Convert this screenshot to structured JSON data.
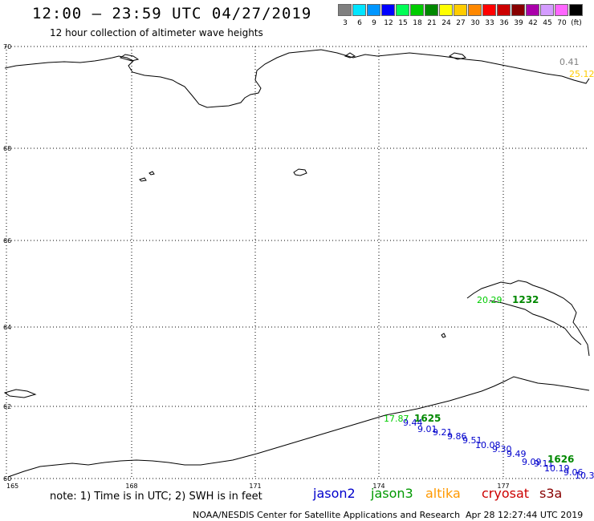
{
  "header": {
    "title": "12:00 – 23:59 UTC 04/27/2019",
    "subtitle": "12 hour collection of altimeter wave heights"
  },
  "scale": {
    "unit": "(ft)",
    "items": [
      {
        "label": "3",
        "color": "#808080"
      },
      {
        "label": "6",
        "color": "#00e5ff"
      },
      {
        "label": "9",
        "color": "#0096ff"
      },
      {
        "label": "12",
        "color": "#0000ff"
      },
      {
        "label": "15",
        "color": "#00ff55"
      },
      {
        "label": "18",
        "color": "#00cc00"
      },
      {
        "label": "21",
        "color": "#008800"
      },
      {
        "label": "24",
        "color": "#ffff00"
      },
      {
        "label": "27",
        "color": "#ffcc00"
      },
      {
        "label": "30",
        "color": "#ff8800"
      },
      {
        "label": "33",
        "color": "#ff0000"
      },
      {
        "label": "36",
        "color": "#cc0000"
      },
      {
        "label": "39",
        "color": "#880000"
      },
      {
        "label": "42",
        "color": "#aa00aa"
      },
      {
        "label": "45",
        "color": "#d49cff"
      },
      {
        "label": "70",
        "color": "#ff66ff"
      },
      {
        "label": "",
        "color": "#000000"
      }
    ]
  },
  "map": {
    "lat_labels": [
      "70",
      "68",
      "66",
      "64",
      "62",
      "60"
    ],
    "lon_labels": [
      "165",
      "168",
      "171",
      "174",
      "177"
    ],
    "observations": [
      {
        "text": "0.41",
        "color": "#808080",
        "bold": false,
        "size": 11
      },
      {
        "text": "25.12",
        "color": "#ffcc00",
        "bold": false,
        "size": 11
      },
      {
        "text": "20.29",
        "color": "#00cc00",
        "bold": false,
        "size": 11
      },
      {
        "text": "1232",
        "color": "#008800",
        "bold": true,
        "size": 12
      },
      {
        "text": "17.87",
        "color": "#00cc00",
        "bold": false,
        "size": 11
      },
      {
        "text": "1625",
        "color": "#008800",
        "bold": true,
        "size": 12
      },
      {
        "text": "9.44",
        "color": "#0000cc",
        "bold": false,
        "size": 11
      },
      {
        "text": "9.01",
        "color": "#0000cc",
        "bold": false,
        "size": 11
      },
      {
        "text": "9.21",
        "color": "#0000cc",
        "bold": false,
        "size": 11
      },
      {
        "text": "9.86",
        "color": "#0000cc",
        "bold": false,
        "size": 11
      },
      {
        "text": "9.51",
        "color": "#0000cc",
        "bold": false,
        "size": 11
      },
      {
        "text": "10.08",
        "color": "#0000cc",
        "bold": false,
        "size": 11
      },
      {
        "text": "9.30",
        "color": "#0000cc",
        "bold": false,
        "size": 11
      },
      {
        "text": "9.49",
        "color": "#0000cc",
        "bold": false,
        "size": 11
      },
      {
        "text": "9.09",
        "color": "#0000cc",
        "bold": false,
        "size": 11
      },
      {
        "text": "9.11",
        "color": "#0000cc",
        "bold": false,
        "size": 11
      },
      {
        "text": "10.19",
        "color": "#0000cc",
        "bold": false,
        "size": 11
      },
      {
        "text": "9.06",
        "color": "#0000cc",
        "bold": false,
        "size": 11
      },
      {
        "text": "10.3",
        "color": "#0000cc",
        "bold": false,
        "size": 11
      },
      {
        "text": "1626",
        "color": "#008800",
        "bold": true,
        "size": 12
      }
    ]
  },
  "legend": {
    "note": "note: 1) Time is in UTC; 2) SWH is in feet",
    "satellites": [
      {
        "name": "jason2",
        "color": "#0000cc"
      },
      {
        "name": "jason3",
        "color": "#009900"
      },
      {
        "name": "altika",
        "color": "#ff9900"
      },
      {
        "name": "cryosat",
        "color": "#cc0000"
      },
      {
        "name": "s3a",
        "color": "#880000"
      }
    ]
  },
  "footer": {
    "credit": "NOAA/NESDIS Center for Satellite Applications and Research",
    "timestamp": "Apr 28 12:27:44 UTC 2019"
  }
}
